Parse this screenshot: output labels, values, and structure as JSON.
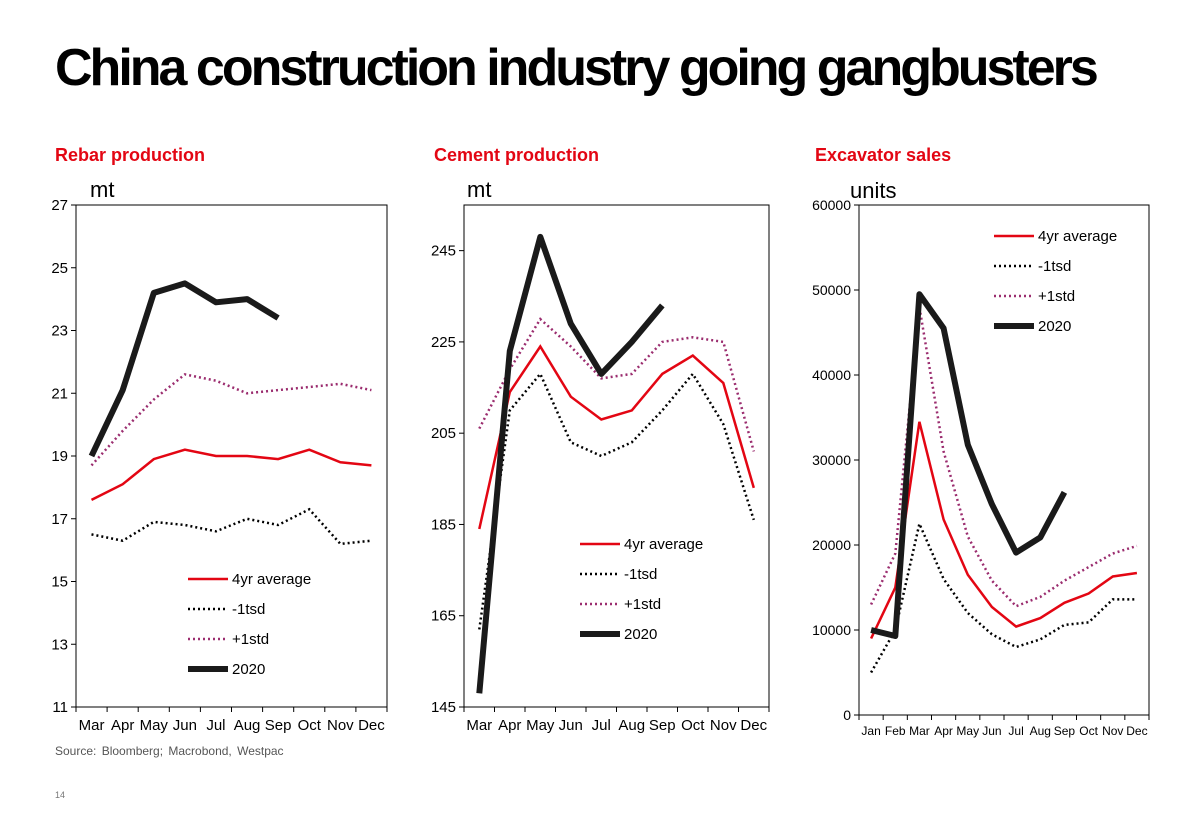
{
  "page": {
    "title": "China construction industry going gangbusters",
    "source": "Source: Bloomberg; Macrobond, Westpac",
    "page_number": "14"
  },
  "colors": {
    "avg": "#e30613",
    "minus_std": "#000000",
    "plus_std": "#9b2d6f",
    "y2020": "#1a1a1a",
    "heading": "#e30613"
  },
  "chart_data": [
    {
      "type": "line",
      "title": "Rebar production",
      "unit": "mt",
      "categories": [
        "Mar",
        "Apr",
        "May",
        "Jun",
        "Jul",
        "Aug",
        "Sep",
        "Oct",
        "Nov",
        "Dec"
      ],
      "ylim": [
        11,
        27
      ],
      "yticks": [
        11,
        13,
        15,
        17,
        19,
        21,
        23,
        25,
        27
      ],
      "grid": false,
      "legend_position": "bottom-left",
      "series": [
        {
          "name": "4yr average",
          "style": "avg",
          "values": [
            17.6,
            18.1,
            18.9,
            19.2,
            19.0,
            19.0,
            18.9,
            19.2,
            18.8,
            18.7
          ]
        },
        {
          "name": "-1tsd",
          "style": "minus",
          "values": [
            16.5,
            16.3,
            16.9,
            16.8,
            16.6,
            17.0,
            16.8,
            17.3,
            16.2,
            16.3
          ]
        },
        {
          "name": "+1std",
          "style": "plus",
          "values": [
            18.7,
            19.8,
            20.8,
            21.6,
            21.4,
            21.0,
            21.1,
            21.2,
            21.3,
            21.1
          ]
        },
        {
          "name": "2020",
          "style": "y2020",
          "values": [
            19.0,
            21.1,
            24.2,
            24.5,
            23.9,
            24.0,
            23.4,
            null,
            null,
            null
          ]
        }
      ]
    },
    {
      "type": "line",
      "title": "Cement production",
      "unit": "mt",
      "categories": [
        "Mar",
        "Apr",
        "May",
        "Jun",
        "Jul",
        "Aug",
        "Sep",
        "Oct",
        "Nov",
        "Dec"
      ],
      "ylim": [
        145,
        255
      ],
      "yticks": [
        145,
        165,
        185,
        205,
        225,
        245
      ],
      "grid": false,
      "legend_position": "bottom-center",
      "series": [
        {
          "name": "4yr average",
          "style": "avg",
          "values": [
            184,
            214,
            224,
            213,
            208,
            210,
            218,
            222,
            216,
            193
          ]
        },
        {
          "name": "-1tsd",
          "style": "minus",
          "values": [
            162,
            210,
            218,
            203,
            200,
            203,
            210,
            218,
            207,
            186
          ]
        },
        {
          "name": "+1std",
          "style": "plus",
          "values": [
            206,
            219,
            230,
            224,
            217,
            218,
            225,
            226,
            225,
            201
          ]
        },
        {
          "name": "2020",
          "style": "y2020",
          "values": [
            148,
            223,
            248,
            229,
            218,
            225,
            233,
            null,
            null,
            null
          ]
        }
      ]
    },
    {
      "type": "line",
      "title": "Excavator sales",
      "unit": "units",
      "categories": [
        "Jan",
        "Feb",
        "Mar",
        "Apr",
        "May",
        "Jun",
        "Jul",
        "Aug",
        "Sep",
        "Oct",
        "Nov",
        "Dec"
      ],
      "ylim": [
        0,
        60000
      ],
      "yticks": [
        0,
        10000,
        20000,
        30000,
        40000,
        50000,
        60000
      ],
      "grid": false,
      "legend_position": "top-right",
      "series": [
        {
          "name": "4yr average",
          "style": "avg",
          "values": [
            9000,
            15000,
            34500,
            23000,
            16500,
            12700,
            10400,
            11400,
            13200,
            14300,
            16300,
            16700
          ]
        },
        {
          "name": "-1tsd",
          "style": "minus",
          "values": [
            5000,
            10000,
            22500,
            16000,
            12000,
            9500,
            8000,
            8900,
            10600,
            10900,
            13600,
            13600
          ]
        },
        {
          "name": "+1std",
          "style": "plus",
          "values": [
            13000,
            19000,
            48000,
            31000,
            21000,
            15800,
            12800,
            13900,
            15800,
            17400,
            19000,
            19900
          ]
        },
        {
          "name": "2020",
          "style": "y2020",
          "values": [
            10000,
            9300,
            49500,
            45500,
            31800,
            24800,
            19100,
            20900,
            26200,
            null,
            null,
            null
          ]
        }
      ]
    }
  ]
}
